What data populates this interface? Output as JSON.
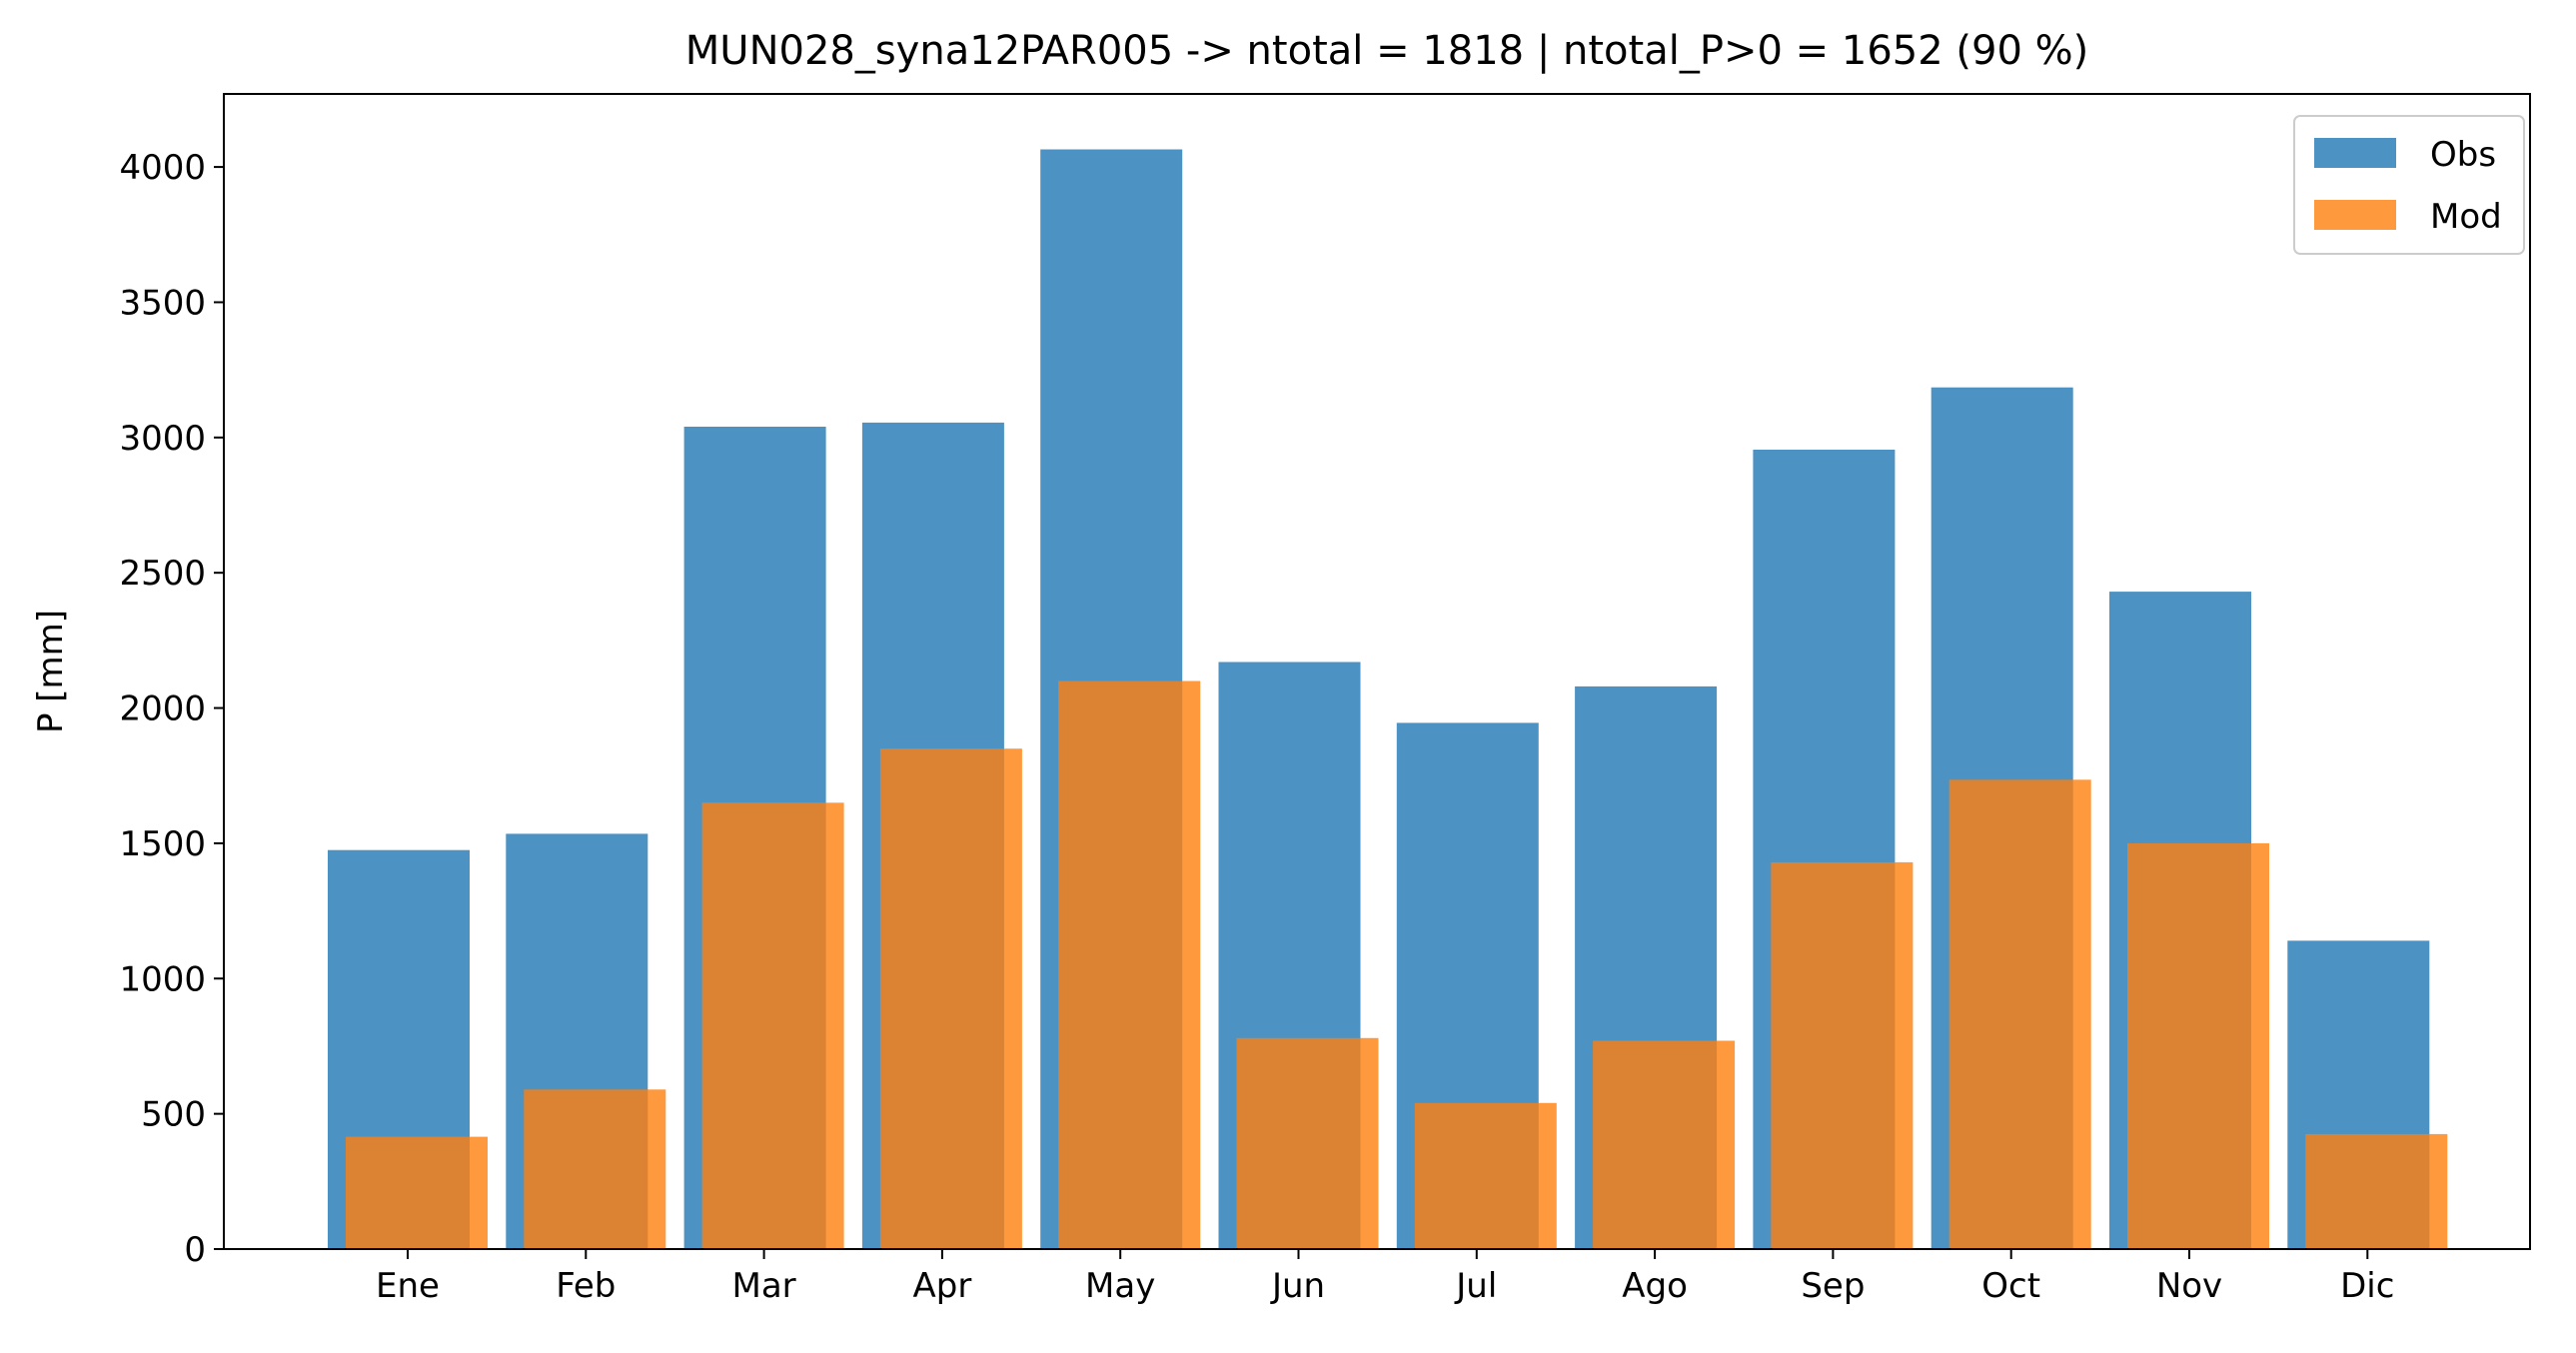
{
  "chart_data": {
    "type": "bar",
    "title": "MUN028_syna12PAR005 -> ntotal = 1818 | ntotal_P>0 = 1652 (90 %)",
    "xlabel": "",
    "ylabel": "P [mm]",
    "categories": [
      "Ene",
      "Feb",
      "Mar",
      "Apr",
      "May",
      "Jun",
      "Jul",
      "Ago",
      "Sep",
      "Oct",
      "Nov",
      "Dic"
    ],
    "ylim": [
      0,
      4270
    ],
    "yticks": [
      0,
      500,
      1000,
      1500,
      2000,
      2500,
      3000,
      3500,
      4000
    ],
    "series": [
      {
        "name": "Obs",
        "color": "#1f77b4",
        "opacity": 0.8,
        "values": [
          1475,
          1535,
          3040,
          3055,
          4065,
          2170,
          1945,
          2080,
          2955,
          3185,
          2430,
          1140
        ]
      },
      {
        "name": "Mod",
        "color": "#ff7f0e",
        "opacity": 0.8,
        "values": [
          415,
          590,
          1650,
          1850,
          2100,
          780,
          540,
          770,
          1430,
          1735,
          1500,
          425
        ]
      }
    ],
    "legend": "top-right",
    "grid": false
  }
}
